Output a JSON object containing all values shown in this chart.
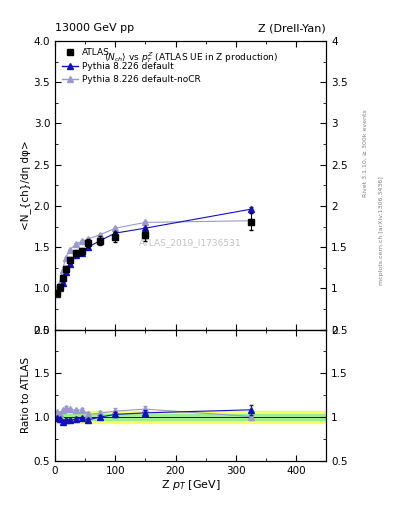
{
  "title_left": "13000 GeV pp",
  "title_right": "Z (Drell-Yan)",
  "rivet_label": "Rivet 3.1.10, ≥ 300k events",
  "mcplots_label": "mcplots.cern.ch [arXiv:1306.3436]",
  "plot_title": "<N_{ch}> vs p_{T}^{Z} (ATLAS UE in Z production)",
  "ylabel_main": "<N_{ch}/dη dφ>",
  "ylabel_ratio": "Ratio to ATLAS",
  "xlabel": "Z p_{T} [GeV]",
  "watermark": "ATLAS_2019_I1736531",
  "atlas_x": [
    2.5,
    7.5,
    12.5,
    17.5,
    25.0,
    35.0,
    45.0,
    55.0,
    75.0,
    100.0,
    150.0,
    325.0
  ],
  "atlas_y": [
    0.945,
    1.02,
    1.13,
    1.24,
    1.35,
    1.43,
    1.45,
    1.55,
    1.58,
    1.62,
    1.65,
    1.81
  ],
  "atlas_yerr": [
    0.025,
    0.025,
    0.03,
    0.03,
    0.03,
    0.04,
    0.04,
    0.05,
    0.05,
    0.06,
    0.07,
    0.1
  ],
  "pythia_default_x": [
    2.5,
    7.5,
    12.5,
    17.5,
    25.0,
    35.0,
    45.0,
    55.0,
    75.0,
    100.0,
    150.0,
    325.0
  ],
  "pythia_default_y": [
    0.93,
    1.0,
    1.07,
    1.2,
    1.3,
    1.4,
    1.43,
    1.5,
    1.58,
    1.67,
    1.73,
    1.96
  ],
  "pythia_default_yerr": [
    0.005,
    0.005,
    0.008,
    0.008,
    0.01,
    0.01,
    0.01,
    0.012,
    0.012,
    0.015,
    0.018,
    0.03
  ],
  "pythia_nocr_x": [
    2.5,
    7.5,
    12.5,
    17.5,
    25.0,
    35.0,
    45.0,
    55.0,
    75.0,
    100.0,
    150.0,
    325.0
  ],
  "pythia_nocr_y": [
    1.0,
    1.06,
    1.22,
    1.37,
    1.47,
    1.54,
    1.57,
    1.6,
    1.65,
    1.73,
    1.8,
    1.82
  ],
  "pythia_nocr_yerr": [
    0.005,
    0.005,
    0.008,
    0.01,
    0.01,
    0.012,
    0.012,
    0.015,
    0.015,
    0.018,
    0.02,
    0.025
  ],
  "ratio_default_y": [
    0.984,
    0.98,
    0.947,
    0.968,
    0.963,
    0.979,
    0.986,
    0.968,
    1.0,
    1.031,
    1.048,
    1.083
  ],
  "ratio_default_yerr": [
    0.012,
    0.012,
    0.015,
    0.015,
    0.015,
    0.018,
    0.018,
    0.022,
    0.022,
    0.028,
    0.032,
    0.055
  ],
  "ratio_nocr_y": [
    1.058,
    1.039,
    1.08,
    1.105,
    1.089,
    1.077,
    1.083,
    1.032,
    1.044,
    1.068,
    1.091,
    1.006
  ],
  "ratio_nocr_yerr": [
    0.012,
    0.012,
    0.015,
    0.018,
    0.018,
    0.02,
    0.022,
    0.025,
    0.025,
    0.03,
    0.035,
    0.042
  ],
  "band_yellow_lo": 0.93,
  "band_yellow_hi": 1.07,
  "band_green_lo": 0.965,
  "band_green_hi": 1.035,
  "atlas_color": "black",
  "pythia_default_color": "#1111bb",
  "pythia_nocr_color": "#9999cc",
  "xlim": [
    0,
    450
  ],
  "ylim_main": [
    0.5,
    4.0
  ],
  "ylim_ratio": [
    0.5,
    2.0
  ],
  "yticks_main": [
    0.5,
    1.0,
    1.5,
    2.0,
    2.5,
    3.0,
    3.5,
    4.0
  ],
  "yticks_ratio": [
    0.5,
    1.0,
    1.5,
    2.0
  ],
  "xticks": [
    0,
    100,
    200,
    300,
    400
  ]
}
